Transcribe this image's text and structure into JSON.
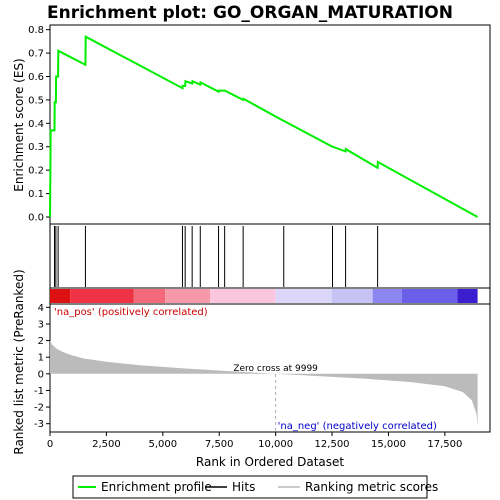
{
  "chart_data": {
    "type": "line",
    "title": "Enrichment plot: GO_ORGAN_MATURATION",
    "xlabel": "Rank in Ordered Dataset",
    "xlim": [
      0,
      19500
    ],
    "x_ticks": [
      0,
      2500,
      5000,
      7500,
      10000,
      12500,
      15000,
      17500
    ],
    "x_tick_labels": [
      "0",
      "2,500",
      "5,000",
      "7,500",
      "10,000",
      "12,500",
      "15,000",
      "17,500"
    ],
    "es_panel": {
      "ylabel": "Enrichment score (ES)",
      "ylim": [
        -0.03,
        0.82
      ],
      "y_ticks": [
        0.0,
        0.1,
        0.2,
        0.3,
        0.4,
        0.5,
        0.6,
        0.7,
        0.8
      ],
      "y_tick_labels": [
        "0.0",
        "0.1",
        "0.2",
        "0.3",
        "0.4",
        "0.5",
        "0.6",
        "0.7",
        "0.8"
      ],
      "series_color": "#00ee00",
      "points": [
        [
          0,
          0.0
        ],
        [
          30,
          0.37
        ],
        [
          200,
          0.37
        ],
        [
          210,
          0.49
        ],
        [
          260,
          0.49
        ],
        [
          270,
          0.6
        ],
        [
          360,
          0.6
        ],
        [
          370,
          0.71
        ],
        [
          1570,
          0.65
        ],
        [
          1580,
          0.77
        ],
        [
          5870,
          0.55
        ],
        [
          5880,
          0.56
        ],
        [
          5990,
          0.56
        ],
        [
          6000,
          0.58
        ],
        [
          6300,
          0.57
        ],
        [
          6310,
          0.58
        ],
        [
          6660,
          0.565
        ],
        [
          6670,
          0.575
        ],
        [
          7470,
          0.535
        ],
        [
          7480,
          0.54
        ],
        [
          7740,
          0.54
        ],
        [
          7750,
          0.54
        ],
        [
          8560,
          0.5
        ],
        [
          8570,
          0.505
        ],
        [
          10360,
          0.41
        ],
        [
          10370,
          0.41
        ],
        [
          12520,
          0.3
        ],
        [
          12530,
          0.3
        ],
        [
          13100,
          0.28
        ],
        [
          13110,
          0.29
        ],
        [
          14520,
          0.21
        ],
        [
          14530,
          0.235
        ],
        [
          18950,
          0.0
        ]
      ]
    },
    "hits": [
      {
        "rank": 200
      },
      {
        "rank": 260
      },
      {
        "rank": 360
      },
      {
        "rank": 1570
      },
      {
        "rank": 5870
      },
      {
        "rank": 5990
      },
      {
        "rank": 6300
      },
      {
        "rank": 6660
      },
      {
        "rank": 7470
      },
      {
        "rank": 7740
      },
      {
        "rank": 8560
      },
      {
        "rank": 10360
      },
      {
        "rank": 12520
      },
      {
        "rank": 13100
      },
      {
        "rank": 14520
      }
    ],
    "color_bar": {
      "segments": [
        {
          "from": 0,
          "to": 900,
          "color": "#dd1111"
        },
        {
          "from": 900,
          "to": 3700,
          "color": "#ee3344"
        },
        {
          "from": 3700,
          "to": 5100,
          "color": "#f36b7a"
        },
        {
          "from": 5100,
          "to": 7100,
          "color": "#f799a8"
        },
        {
          "from": 7100,
          "to": 10000,
          "color": "#fbc4df"
        },
        {
          "from": 10000,
          "to": 12500,
          "color": "#dcd6f8"
        },
        {
          "from": 12500,
          "to": 14300,
          "color": "#c6c2f4"
        },
        {
          "from": 14300,
          "to": 15600,
          "color": "#8b86f0"
        },
        {
          "from": 15600,
          "to": 18050,
          "color": "#6b5ee8"
        },
        {
          "from": 18050,
          "to": 18950,
          "color": "#3a1ed0"
        }
      ]
    },
    "metric_panel": {
      "ylabel": "Ranked list metric (PreRanked)",
      "ylim": [
        -3.5,
        4.2
      ],
      "y_ticks": [
        -3,
        -2,
        -1,
        0,
        1,
        2,
        3,
        4
      ],
      "y_tick_labels": [
        "-3",
        "-2",
        "-1",
        "0",
        "1",
        "2",
        "3",
        "4"
      ],
      "fill_color": "#bbbbbb",
      "curve": [
        [
          0,
          2.0
        ],
        [
          100,
          1.75
        ],
        [
          300,
          1.5
        ],
        [
          600,
          1.3
        ],
        [
          1000,
          1.1
        ],
        [
          1500,
          0.92
        ],
        [
          2500,
          0.72
        ],
        [
          4000,
          0.52
        ],
        [
          6000,
          0.32
        ],
        [
          8000,
          0.15
        ],
        [
          9999,
          0.0
        ],
        [
          12000,
          -0.15
        ],
        [
          14000,
          -0.3
        ],
        [
          16000,
          -0.5
        ],
        [
          17500,
          -0.75
        ],
        [
          18300,
          -1.1
        ],
        [
          18700,
          -1.6
        ],
        [
          18900,
          -2.4
        ],
        [
          18950,
          -3.2
        ]
      ],
      "zero_cross_label": "Zero cross at 9999",
      "zero_cross_rank": 9999,
      "pos_label": "'na_pos' (positively correlated)",
      "neg_label": "'na_neg' (negatively correlated)"
    },
    "legend": {
      "placement": "bottom",
      "items": [
        {
          "label": "Enrichment profile",
          "color": "#00ee00",
          "kind": "line"
        },
        {
          "label": "Hits",
          "color": "#000000",
          "kind": "line"
        },
        {
          "label": "Ranking metric scores",
          "color": "#bbbbbb",
          "kind": "line"
        }
      ]
    }
  }
}
